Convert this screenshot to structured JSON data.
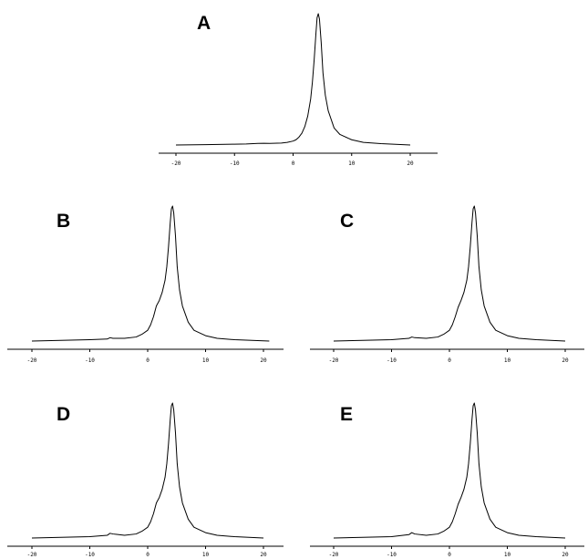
{
  "chart_data": [
    {
      "type": "line",
      "panel_label": "A",
      "x_ticks": [
        "-20",
        "-10",
        "0",
        "10",
        "20"
      ],
      "xlim": [
        -20,
        20
      ],
      "ylim": [
        0,
        1
      ],
      "series": [
        {
          "x": [
            -20,
            -15,
            -10,
            -8,
            -6,
            -5,
            -4,
            -2,
            -1,
            0,
            0.5,
            1,
            1.5,
            2,
            2.5,
            3,
            3.3,
            3.6,
            3.9,
            4.1,
            4.3,
            4.5,
            4.8,
            5.1,
            5.5,
            6,
            7,
            8,
            10,
            12,
            15,
            20
          ],
          "y": [
            0.0,
            0.003,
            0.006,
            0.008,
            0.012,
            0.013,
            0.012,
            0.015,
            0.02,
            0.03,
            0.04,
            0.06,
            0.09,
            0.14,
            0.22,
            0.35,
            0.48,
            0.65,
            0.85,
            0.97,
            1.0,
            0.96,
            0.78,
            0.55,
            0.38,
            0.26,
            0.13,
            0.08,
            0.04,
            0.02,
            0.01,
            0.0
          ],
          "color": "#000000"
        }
      ]
    },
    {
      "type": "line",
      "panel_label": "B",
      "x_ticks": [
        "-20",
        "-10",
        "0",
        "10",
        "20"
      ],
      "xlim": [
        -20,
        20
      ],
      "ylim": [
        0,
        1
      ],
      "series": [
        {
          "x": [
            -20,
            -15,
            -10,
            -7,
            -6.5,
            -6,
            -4,
            -2,
            -1,
            0,
            0.5,
            1,
            1.5,
            2,
            2.5,
            3,
            3.3,
            3.6,
            3.9,
            4.1,
            4.3,
            4.5,
            4.8,
            5.1,
            5.5,
            6,
            7,
            8,
            10,
            12,
            15,
            21
          ],
          "y": [
            0.0,
            0.005,
            0.01,
            0.015,
            0.025,
            0.02,
            0.02,
            0.03,
            0.05,
            0.08,
            0.12,
            0.18,
            0.26,
            0.3,
            0.36,
            0.45,
            0.55,
            0.7,
            0.88,
            0.98,
            1.0,
            0.95,
            0.78,
            0.55,
            0.38,
            0.26,
            0.14,
            0.08,
            0.04,
            0.02,
            0.01,
            0.0
          ],
          "color": "#000000"
        }
      ]
    },
    {
      "type": "line",
      "panel_label": "C",
      "x_ticks": [
        "-20",
        "-10",
        "0",
        "10",
        "20"
      ],
      "xlim": [
        -20,
        20
      ],
      "ylim": [
        0,
        1
      ],
      "series": [
        {
          "x": [
            -20,
            -15,
            -10,
            -7,
            -6.5,
            -6,
            -4,
            -2,
            -1,
            0,
            0.5,
            1,
            1.5,
            2,
            2.5,
            3,
            3.3,
            3.6,
            3.9,
            4.1,
            4.3,
            4.5,
            4.8,
            5.1,
            5.5,
            6,
            7,
            8,
            10,
            12,
            15,
            20
          ],
          "y": [
            0.0,
            0.005,
            0.01,
            0.02,
            0.03,
            0.025,
            0.02,
            0.03,
            0.05,
            0.08,
            0.12,
            0.18,
            0.25,
            0.3,
            0.36,
            0.45,
            0.55,
            0.7,
            0.88,
            0.98,
            1.0,
            0.95,
            0.78,
            0.55,
            0.38,
            0.26,
            0.14,
            0.08,
            0.04,
            0.02,
            0.01,
            0.0
          ],
          "color": "#000000"
        }
      ]
    },
    {
      "type": "line",
      "panel_label": "D",
      "x_ticks": [
        "-20",
        "-10",
        "0",
        "10",
        "20"
      ],
      "xlim": [
        -20,
        20
      ],
      "ylim": [
        0,
        1
      ],
      "series": [
        {
          "x": [
            -20,
            -15,
            -10,
            -7,
            -6.5,
            -6,
            -4,
            -2,
            -1,
            0,
            0.5,
            1,
            1.5,
            2,
            2.5,
            3,
            3.3,
            3.6,
            3.9,
            4.1,
            4.3,
            4.5,
            4.8,
            5.1,
            5.5,
            6,
            7,
            8,
            10,
            12,
            15,
            20
          ],
          "y": [
            0.0,
            0.005,
            0.01,
            0.02,
            0.035,
            0.03,
            0.02,
            0.03,
            0.05,
            0.08,
            0.12,
            0.18,
            0.26,
            0.3,
            0.36,
            0.45,
            0.55,
            0.7,
            0.88,
            0.98,
            1.0,
            0.95,
            0.78,
            0.55,
            0.38,
            0.26,
            0.14,
            0.08,
            0.04,
            0.02,
            0.01,
            0.0
          ],
          "color": "#000000"
        }
      ]
    },
    {
      "type": "line",
      "panel_label": "E",
      "x_ticks": [
        "-20",
        "-10",
        "0",
        "10",
        "20"
      ],
      "xlim": [
        -20,
        20
      ],
      "ylim": [
        0,
        1
      ],
      "series": [
        {
          "x": [
            -20,
            -15,
            -10,
            -7,
            -6.5,
            -6,
            -4,
            -2,
            -1,
            0,
            0.5,
            1,
            1.5,
            2,
            2.5,
            3,
            3.3,
            3.6,
            3.9,
            4.1,
            4.3,
            4.5,
            4.8,
            5.1,
            5.5,
            6,
            7,
            8,
            10,
            12,
            15,
            20
          ],
          "y": [
            0.0,
            0.005,
            0.01,
            0.025,
            0.04,
            0.03,
            0.02,
            0.03,
            0.05,
            0.08,
            0.12,
            0.18,
            0.25,
            0.3,
            0.36,
            0.45,
            0.55,
            0.7,
            0.88,
            0.98,
            1.0,
            0.95,
            0.78,
            0.55,
            0.38,
            0.26,
            0.14,
            0.08,
            0.04,
            0.02,
            0.01,
            0.0
          ],
          "color": "#000000"
        }
      ]
    }
  ]
}
